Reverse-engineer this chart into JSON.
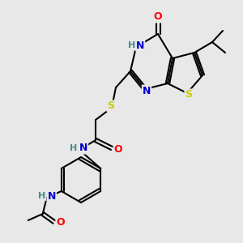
{
  "bg_color": "#e8e8e8",
  "bond_color": "#000000",
  "atom_colors": {
    "O": "#ff0000",
    "N": "#0000cd",
    "S": "#cccc00",
    "H": "#4a8a8a",
    "C": "#000000"
  }
}
